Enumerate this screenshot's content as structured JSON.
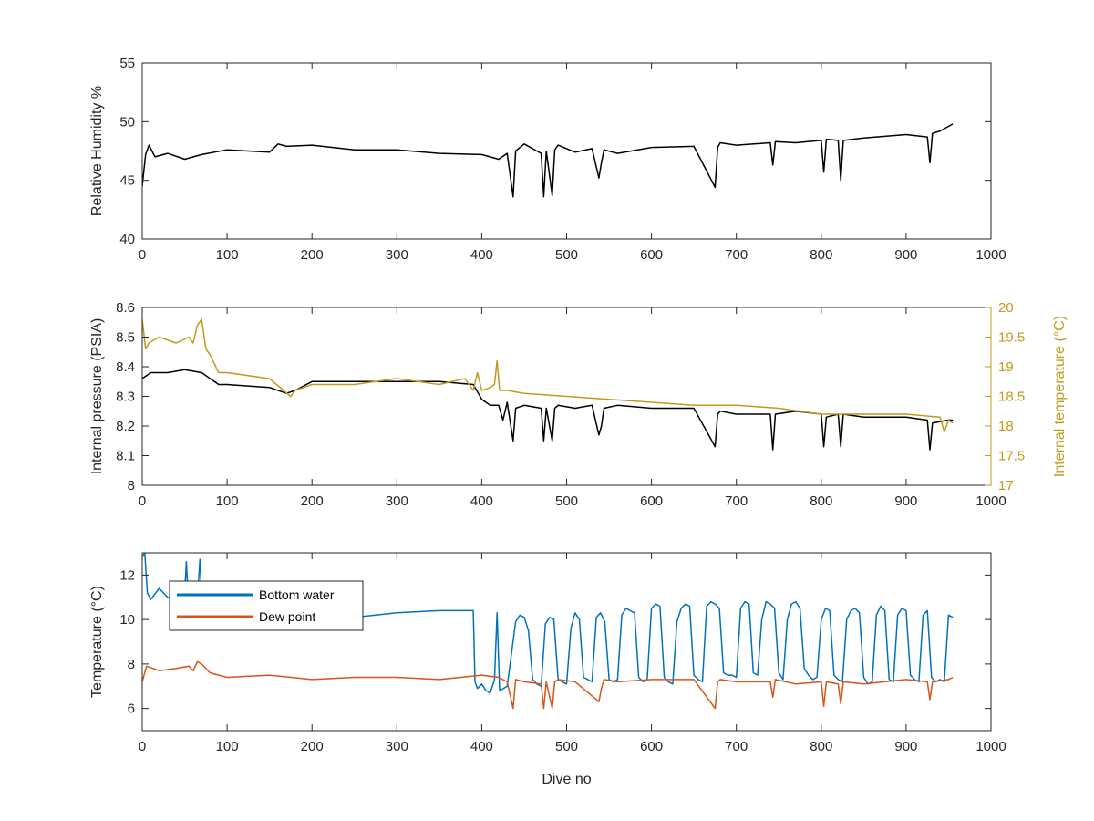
{
  "colors": {
    "black": "#000000",
    "axis": "#262626",
    "blue": "#0072BD",
    "orange": "#D95319",
    "gold": "#C49A1C"
  },
  "chart_data": [
    {
      "type": "line",
      "xlabel": "",
      "ylabel": "Relative Humidity %",
      "xlim": [
        0,
        1000
      ],
      "ylim": [
        40,
        55
      ],
      "xticks": [
        "0",
        "100",
        "200",
        "300",
        "400",
        "500",
        "600",
        "700",
        "800",
        "900",
        "1000"
      ],
      "yticks": [
        "40",
        "45",
        "50",
        "55"
      ],
      "grid": false,
      "series": [
        {
          "name": "",
          "color": "#000000",
          "x": [
            0,
            4,
            8,
            15,
            30,
            50,
            70,
            100,
            150,
            160,
            170,
            200,
            250,
            300,
            350,
            400,
            420,
            430,
            437,
            440,
            450,
            470,
            473,
            476,
            483,
            486,
            490,
            510,
            530,
            538,
            541,
            544,
            560,
            600,
            650,
            675,
            678,
            681,
            700,
            740,
            743,
            746,
            770,
            800,
            803,
            806,
            820,
            823,
            826,
            850,
            900,
            925,
            928,
            931,
            940,
            950,
            955
          ],
          "y": [
            44.5,
            47.2,
            48.0,
            47.0,
            47.3,
            46.8,
            47.2,
            47.6,
            47.4,
            48.1,
            47.9,
            48.0,
            47.6,
            47.6,
            47.3,
            47.2,
            46.8,
            47.3,
            43.6,
            47.5,
            48.1,
            47.3,
            43.6,
            47.5,
            43.7,
            47.6,
            48.0,
            47.4,
            47.7,
            45.2,
            46.5,
            47.6,
            47.3,
            47.8,
            47.9,
            44.4,
            47.8,
            48.2,
            48.0,
            48.2,
            46.3,
            48.3,
            48.2,
            48.4,
            45.7,
            48.5,
            48.4,
            45.0,
            48.4,
            48.6,
            48.9,
            48.7,
            46.5,
            49.0,
            49.2,
            49.6,
            49.8
          ]
        }
      ]
    },
    {
      "type": "line",
      "xlabel": "",
      "ylabel": "Internal pressure (PSIA)",
      "ylabel_right": "Internal temperature (°C)",
      "xlim": [
        0,
        1000
      ],
      "ylim": [
        8,
        8.6
      ],
      "ylim_right": [
        17,
        20
      ],
      "xticks": [
        "0",
        "100",
        "200",
        "300",
        "400",
        "500",
        "600",
        "700",
        "800",
        "900",
        "1000"
      ],
      "yticks": [
        "8",
        "8.1",
        "8.2",
        "8.3",
        "8.4",
        "8.5",
        "8.6"
      ],
      "yticks_right": [
        "17",
        "17.5",
        "18",
        "18.5",
        "19",
        "19.5",
        "20"
      ],
      "grid": false,
      "series": [
        {
          "name": "",
          "color": "#000000",
          "axis": "left",
          "x": [
            0,
            10,
            30,
            50,
            70,
            80,
            90,
            100,
            150,
            170,
            180,
            200,
            250,
            300,
            350,
            390,
            400,
            410,
            420,
            425,
            430,
            437,
            440,
            450,
            470,
            473,
            476,
            483,
            486,
            490,
            510,
            530,
            538,
            541,
            544,
            560,
            600,
            650,
            675,
            678,
            681,
            700,
            740,
            743,
            746,
            770,
            800,
            803,
            806,
            820,
            823,
            826,
            850,
            900,
            925,
            928,
            931,
            950,
            955
          ],
          "y": [
            8.36,
            8.38,
            8.38,
            8.39,
            8.38,
            8.36,
            8.34,
            8.34,
            8.33,
            8.31,
            8.32,
            8.35,
            8.35,
            8.35,
            8.35,
            8.34,
            8.29,
            8.27,
            8.27,
            8.22,
            8.28,
            8.15,
            8.26,
            8.27,
            8.26,
            8.15,
            8.26,
            8.15,
            8.26,
            8.27,
            8.26,
            8.27,
            8.17,
            8.2,
            8.26,
            8.27,
            8.26,
            8.26,
            8.13,
            8.24,
            8.25,
            8.24,
            8.24,
            8.12,
            8.24,
            8.25,
            8.24,
            8.13,
            8.23,
            8.24,
            8.13,
            8.24,
            8.23,
            8.23,
            8.22,
            8.12,
            8.21,
            8.22,
            8.22
          ]
        },
        {
          "name": "",
          "color": "#C49A1C",
          "axis": "right",
          "x": [
            0,
            4,
            8,
            20,
            40,
            55,
            60,
            65,
            70,
            75,
            80,
            90,
            100,
            150,
            175,
            180,
            200,
            250,
            300,
            350,
            380,
            390,
            395,
            400,
            410,
            415,
            418,
            421,
            430,
            450,
            500,
            550,
            600,
            650,
            700,
            750,
            800,
            850,
            900,
            940,
            945,
            950,
            955
          ],
          "y": [
            19.8,
            19.3,
            19.4,
            19.5,
            19.4,
            19.5,
            19.4,
            19.7,
            19.8,
            19.3,
            19.2,
            18.9,
            18.9,
            18.8,
            18.5,
            18.6,
            18.7,
            18.7,
            18.8,
            18.7,
            18.8,
            18.6,
            18.9,
            18.6,
            18.65,
            18.7,
            19.1,
            18.6,
            18.6,
            18.55,
            18.5,
            18.45,
            18.4,
            18.35,
            18.35,
            18.3,
            18.2,
            18.2,
            18.2,
            18.15,
            17.9,
            18.1,
            18.05
          ]
        }
      ]
    },
    {
      "type": "line",
      "xlabel": "Dive no",
      "ylabel": "Temperature (°C)",
      "xlim": [
        0,
        1000
      ],
      "ylim": [
        5,
        13
      ],
      "xticks": [
        "0",
        "100",
        "200",
        "300",
        "400",
        "500",
        "600",
        "700",
        "800",
        "900",
        "1000"
      ],
      "yticks": [
        "6",
        "8",
        "10",
        "12"
      ],
      "grid": false,
      "legend_position": "top-left",
      "series": [
        {
          "name": "Bottom water",
          "color": "#0072BD",
          "x": [
            0,
            3,
            6,
            10,
            20,
            30,
            40,
            50,
            52,
            54,
            60,
            66,
            68,
            70,
            80,
            100,
            150,
            200,
            250,
            300,
            350,
            390,
            392,
            395,
            400,
            405,
            410,
            415,
            418,
            421,
            430,
            440,
            445,
            450,
            455,
            460,
            465,
            470,
            475,
            480,
            485,
            490,
            495,
            500,
            505,
            510,
            515,
            520,
            525,
            530,
            535,
            540,
            545,
            550,
            555,
            560,
            565,
            570,
            575,
            580,
            585,
            590,
            595,
            600,
            605,
            610,
            615,
            620,
            625,
            630,
            635,
            640,
            645,
            650,
            655,
            660,
            665,
            670,
            675,
            680,
            685,
            690,
            695,
            700,
            705,
            710,
            715,
            720,
            725,
            730,
            735,
            740,
            745,
            750,
            755,
            760,
            765,
            770,
            775,
            780,
            785,
            790,
            795,
            800,
            805,
            810,
            815,
            820,
            825,
            830,
            835,
            840,
            845,
            850,
            855,
            860,
            865,
            870,
            875,
            880,
            885,
            890,
            895,
            900,
            905,
            910,
            915,
            920,
            925,
            930,
            935,
            940,
            945,
            950,
            955
          ],
          "y": [
            12.8,
            13.0,
            11.2,
            10.9,
            11.4,
            11.0,
            10.9,
            11.2,
            12.6,
            11.1,
            11.4,
            11.5,
            12.7,
            11.0,
            10.8,
            10.3,
            10.1,
            10.0,
            10.1,
            10.3,
            10.4,
            10.4,
            7.2,
            6.9,
            7.1,
            6.8,
            6.7,
            7.3,
            10.3,
            6.8,
            7.0,
            9.9,
            10.2,
            10.1,
            9.5,
            7.3,
            7.1,
            7.0,
            9.8,
            10.1,
            10.0,
            7.3,
            7.2,
            7.1,
            9.6,
            10.3,
            10.0,
            7.4,
            7.3,
            7.2,
            10.1,
            10.3,
            9.9,
            7.3,
            7.2,
            7.3,
            10.2,
            10.5,
            10.4,
            10.3,
            7.4,
            7.2,
            7.3,
            10.5,
            10.7,
            10.6,
            7.4,
            7.2,
            7.1,
            9.9,
            10.5,
            10.7,
            10.6,
            7.5,
            7.3,
            7.2,
            10.6,
            10.8,
            10.7,
            10.5,
            7.6,
            7.5,
            7.5,
            7.4,
            10.5,
            10.8,
            10.7,
            7.6,
            7.5,
            10.0,
            10.8,
            10.7,
            10.5,
            7.6,
            7.3,
            10.0,
            10.7,
            10.8,
            10.5,
            7.8,
            7.5,
            7.3,
            7.4,
            10.0,
            10.5,
            10.4,
            7.5,
            7.3,
            7.2,
            10.0,
            10.4,
            10.5,
            10.3,
            7.4,
            7.1,
            7.2,
            10.2,
            10.6,
            10.4,
            7.3,
            7.2,
            10.2,
            10.5,
            10.4,
            7.5,
            7.3,
            7.2,
            10.2,
            10.4,
            7.4,
            7.2,
            7.3,
            7.2,
            10.2,
            10.1
          ]
        },
        {
          "name": "Dew point",
          "color": "#D95319",
          "x": [
            0,
            5,
            20,
            40,
            55,
            60,
            65,
            70,
            80,
            90,
            100,
            150,
            200,
            250,
            300,
            350,
            400,
            420,
            430,
            437,
            440,
            450,
            470,
            473,
            476,
            483,
            486,
            490,
            510,
            538,
            541,
            544,
            560,
            600,
            650,
            675,
            678,
            681,
            700,
            740,
            743,
            746,
            770,
            800,
            803,
            806,
            820,
            823,
            826,
            850,
            900,
            925,
            928,
            931,
            950,
            955
          ],
          "y": [
            7.2,
            7.9,
            7.7,
            7.8,
            7.9,
            7.7,
            8.1,
            8.0,
            7.6,
            7.5,
            7.4,
            7.5,
            7.3,
            7.4,
            7.4,
            7.3,
            7.5,
            7.4,
            7.2,
            6.0,
            7.3,
            7.2,
            7.1,
            6.0,
            7.2,
            6.0,
            7.2,
            7.3,
            7.2,
            6.3,
            6.9,
            7.3,
            7.2,
            7.3,
            7.3,
            6.0,
            7.2,
            7.3,
            7.2,
            7.2,
            6.5,
            7.3,
            7.1,
            7.2,
            6.1,
            7.2,
            7.1,
            6.2,
            7.2,
            7.1,
            7.3,
            7.2,
            6.4,
            7.2,
            7.3,
            7.4
          ]
        }
      ]
    }
  ]
}
